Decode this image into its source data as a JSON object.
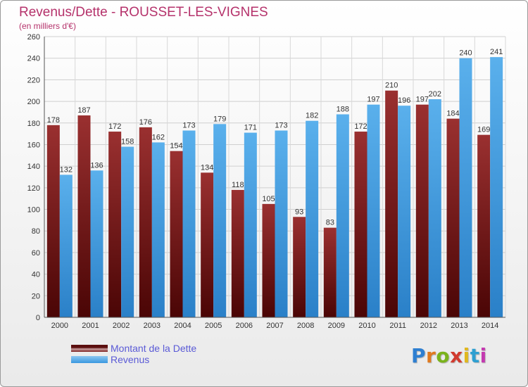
{
  "chart_data": {
    "type": "bar",
    "title": "Revenus/Dette - ROUSSET-LES-VIGNES",
    "subtitle": "(en milliers d'€)",
    "categories": [
      "2000",
      "2001",
      "2002",
      "2003",
      "2004",
      "2005",
      "2006",
      "2007",
      "2008",
      "2009",
      "2010",
      "2011",
      "2012",
      "2013",
      "2014"
    ],
    "series": [
      {
        "name": "Montant de la Dette",
        "color": "#7a1a1a",
        "values": [
          178,
          187,
          172,
          176,
          154,
          134,
          118,
          105,
          93,
          83,
          172,
          210,
          197,
          184,
          169
        ]
      },
      {
        "name": "Revenus",
        "color": "#3a98e0",
        "values": [
          132,
          136,
          158,
          162,
          173,
          179,
          171,
          173,
          182,
          188,
          197,
          196,
          202,
          240,
          241
        ]
      }
    ],
    "ylim": [
      0,
      260
    ],
    "yticks": [
      0,
      20,
      40,
      60,
      80,
      100,
      120,
      140,
      160,
      180,
      200,
      220,
      240,
      260
    ],
    "grid": true,
    "legend": "bottom-left"
  },
  "logo": {
    "text": "Proxiti",
    "colors": [
      "#2e7fd1",
      "#e07a1f",
      "#7ab31c",
      "#d13a2e",
      "#e0b81f",
      "#2e9fd1",
      "#c43ab0"
    ]
  }
}
